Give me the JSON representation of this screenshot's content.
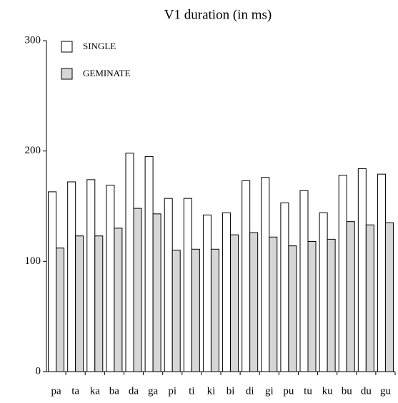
{
  "chart_data": {
    "type": "bar",
    "title": "V1 duration (in ms)",
    "categories": [
      "pa",
      "ta",
      "ka",
      "ba",
      "da",
      "ga",
      "pi",
      "ti",
      "ki",
      "bi",
      "di",
      "gi",
      "pu",
      "tu",
      "ku",
      "bu",
      "du",
      "gu"
    ],
    "series": [
      {
        "name": "SINGLE",
        "color": "#ffffff",
        "values": [
          163,
          172,
          174,
          169,
          198,
          195,
          157,
          157,
          142,
          144,
          173,
          176,
          153,
          164,
          144,
          178,
          184,
          179
        ]
      },
      {
        "name": "GEMINATE",
        "color": "#d6d6d6",
        "values": [
          112,
          123,
          123,
          130,
          148,
          143,
          110,
          111,
          111,
          124,
          126,
          122,
          114,
          118,
          120,
          136,
          133,
          135
        ]
      }
    ],
    "ylim": [
      0,
      300
    ],
    "yticks": [
      0,
      100,
      200,
      300
    ],
    "legend": "top-left"
  }
}
